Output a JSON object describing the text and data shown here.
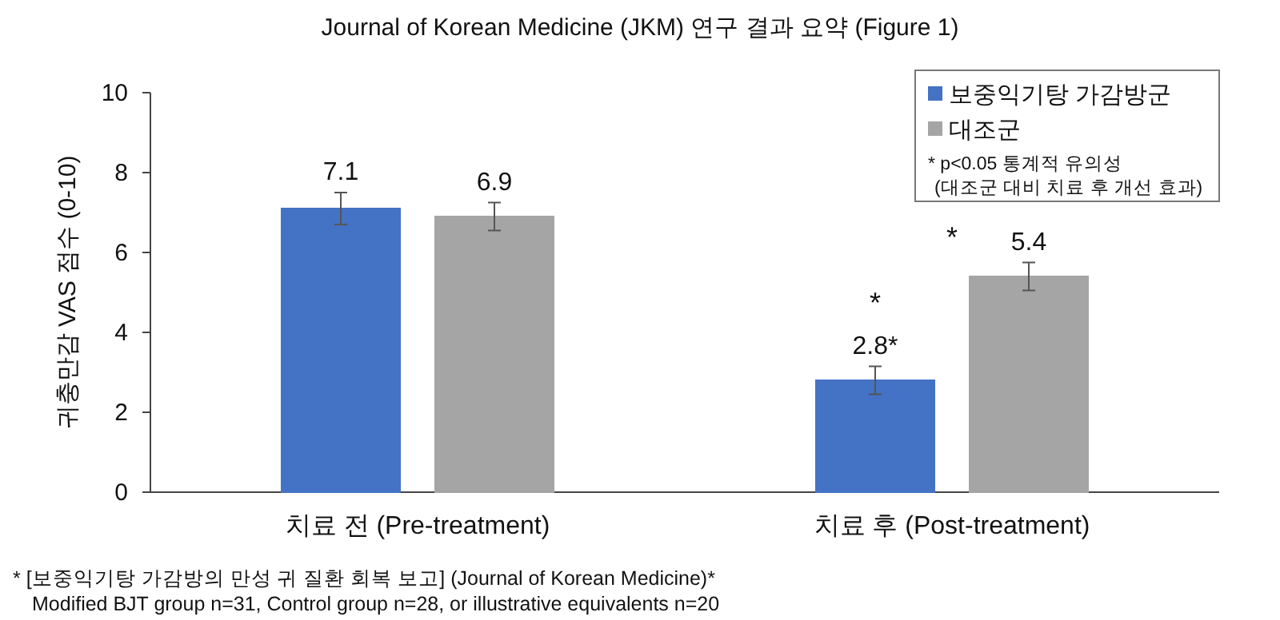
{
  "chart_data": {
    "type": "bar",
    "title": "Journal of Korean Medicine (JKM) 연구 결과 요약 (Figure 1)",
    "ylabel": "귀충만감 VAS 점수 (0-10)",
    "categories": [
      "치료 전 (Pre-treatment)",
      "치료 후 (Post-treatment)"
    ],
    "series": [
      {
        "name": "보중익기탕 가감방군",
        "color": "#4472c4",
        "values": [
          7.1,
          2.8
        ],
        "errors": [
          0.4,
          0.35
        ],
        "value_labels": [
          "7.1",
          "2.8*"
        ]
      },
      {
        "name": "대조군",
        "color": "#a5a5a5",
        "values": [
          6.9,
          5.4
        ],
        "errors": [
          0.35,
          0.35
        ],
        "value_labels": [
          "6.9",
          "5.4"
        ]
      }
    ],
    "ylim": [
      0,
      10
    ],
    "yticks": [
      0,
      2,
      4,
      6,
      8,
      10
    ],
    "grid": false,
    "legend": "top right",
    "annotations": [
      "*",
      "*",
      "* p<0.05 통계적 유의성",
      "(대조군 대비 치료 후 개선 효과)",
      "* [보중익기탕 가감방의 만성 귀 질환 회복 보고] (Journal of Korean Medicine)*",
      "Modified BJT group n=31, Control group n=28, or illustrative equivalents n=20"
    ]
  }
}
